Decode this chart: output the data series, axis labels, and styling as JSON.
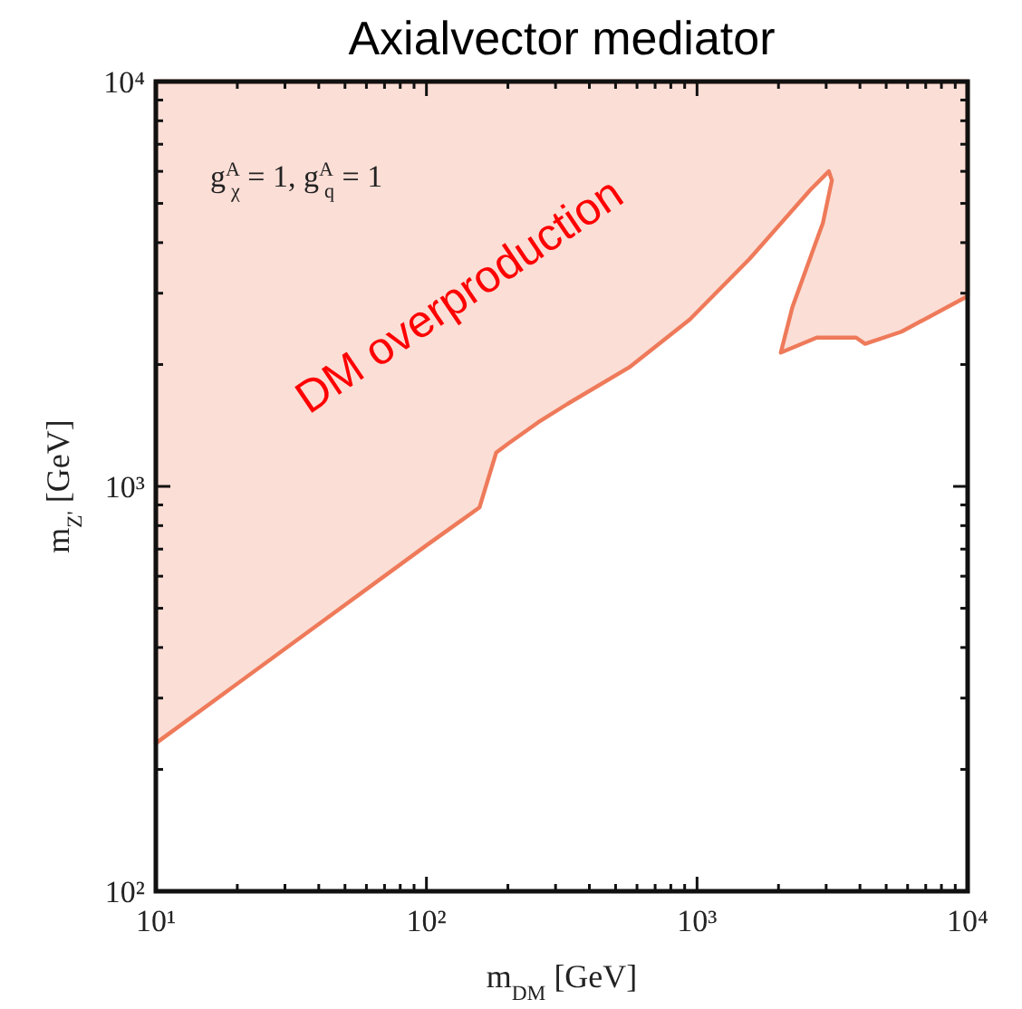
{
  "chart_data": {
    "type": "area",
    "title": "Axialvector mediator",
    "xlabel": "m$_{DM}$ [GeV]",
    "ylabel": "m$_{Z'}$ [GeV]",
    "log": "xy",
    "grid": false,
    "xlim": [
      10,
      10000
    ],
    "ylim": [
      100,
      10000
    ],
    "xticks": [
      {
        "value": 10,
        "label": "10¹"
      },
      {
        "value": 20,
        "label": null
      },
      {
        "value": 30,
        "label": null
      },
      {
        "value": 40,
        "label": null
      },
      {
        "value": 50,
        "label": null
      },
      {
        "value": 60,
        "label": null
      },
      {
        "value": 70,
        "label": null
      },
      {
        "value": 80,
        "label": null
      },
      {
        "value": 90,
        "label": null
      },
      {
        "value": 100,
        "label": "10²"
      },
      {
        "value": 200,
        "label": null
      },
      {
        "value": 300,
        "label": null
      },
      {
        "value": 400,
        "label": null
      },
      {
        "value": 500,
        "label": null
      },
      {
        "value": 600,
        "label": null
      },
      {
        "value": 700,
        "label": null
      },
      {
        "value": 800,
        "label": null
      },
      {
        "value": 900,
        "label": null
      },
      {
        "value": 1000,
        "label": "10³"
      },
      {
        "value": 2000,
        "label": null
      },
      {
        "value": 3000,
        "label": null
      },
      {
        "value": 4000,
        "label": null
      },
      {
        "value": 5000,
        "label": null
      },
      {
        "value": 6000,
        "label": null
      },
      {
        "value": 7000,
        "label": null
      },
      {
        "value": 8000,
        "label": null
      },
      {
        "value": 9000,
        "label": null
      },
      {
        "value": 10000,
        "label": "10⁴"
      }
    ],
    "yticks": [
      {
        "value": 100,
        "label": "10²"
      },
      {
        "value": 200,
        "label": null
      },
      {
        "value": 300,
        "label": null
      },
      {
        "value": 400,
        "label": null
      },
      {
        "value": 500,
        "label": null
      },
      {
        "value": 600,
        "label": null
      },
      {
        "value": 700,
        "label": null
      },
      {
        "value": 800,
        "label": null
      },
      {
        "value": 900,
        "label": null
      },
      {
        "value": 1000,
        "label": "10³"
      },
      {
        "value": 2000,
        "label": null
      },
      {
        "value": 3000,
        "label": null
      },
      {
        "value": 4000,
        "label": null
      },
      {
        "value": 5000,
        "label": null
      },
      {
        "value": 6000,
        "label": null
      },
      {
        "value": 7000,
        "label": null
      },
      {
        "value": 8000,
        "label": null
      },
      {
        "value": 9000,
        "label": null
      },
      {
        "value": 10000,
        "label": "10⁴"
      }
    ],
    "series": [
      {
        "color": "#ee7a5a",
        "x": [
          10,
          100,
          157,
          181,
          200,
          259,
          333,
          561,
          940,
          1567,
          2630,
          3070,
          3150,
          2920,
          2250,
          2040,
          2770,
          3870,
          4180,
          5690,
          10000,
          10000,
          10
        ],
        "values": [
          232,
          715,
          887,
          1211,
          1274,
          1440,
          1600,
          1967,
          2583,
          3654,
          5410,
          6000,
          5700,
          4480,
          2770,
          2140,
          2330,
          2330,
          2250,
          2410,
          2950,
          10000,
          10000
        ]
      }
    ],
    "annotations": [
      "DM overproduction",
      "g$^{A}$$_{χ}$ = 1,  g$^{A}$$_{q}$ = 1"
    ]
  }
}
